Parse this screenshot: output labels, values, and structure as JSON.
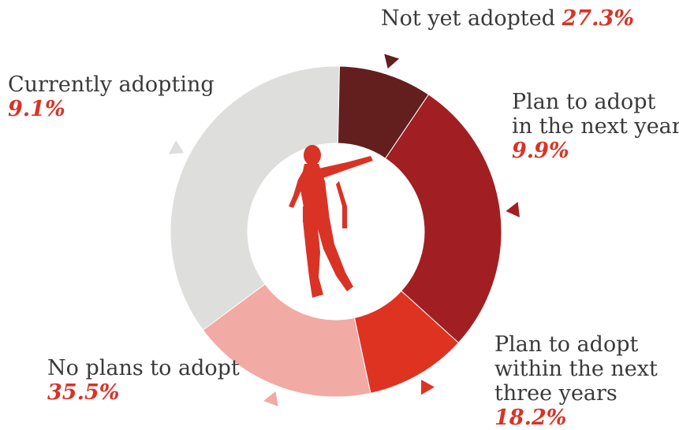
{
  "chart_data": {
    "type": "pie",
    "donut": true,
    "start_angle_deg": -56,
    "slices": [
      {
        "name": "Not yet adopted",
        "label_lines": [
          "Not yet adopted"
        ],
        "value": 27.3,
        "value_label": "27.3%",
        "color": "#a11f22"
      },
      {
        "name": "Plan to adopt in the next year",
        "label_lines": [
          "Plan to adopt",
          "in the next year"
        ],
        "value": 9.9,
        "value_label": "9.9%",
        "color": "#df3322"
      },
      {
        "name": "Plan to adopt within the next three years",
        "label_lines": [
          "Plan to adopt",
          "within the next",
          "three years"
        ],
        "value": 18.2,
        "value_label": "18.2%",
        "color": "#f1aaa4"
      },
      {
        "name": "No plans to adopt",
        "label_lines": [
          "No plans to adopt"
        ],
        "value": 35.5,
        "value_label": "35.5%",
        "color": "#dededd"
      },
      {
        "name": "Currently adopting",
        "label_lines": [
          "Currently adopting"
        ],
        "value": 9.1,
        "value_label": "9.1%",
        "color": "#621f1e"
      }
    ],
    "center_icon": "dancing-person-silhouette-icon",
    "center_icon_color": "#d93326",
    "accent_color": "#d93326"
  }
}
